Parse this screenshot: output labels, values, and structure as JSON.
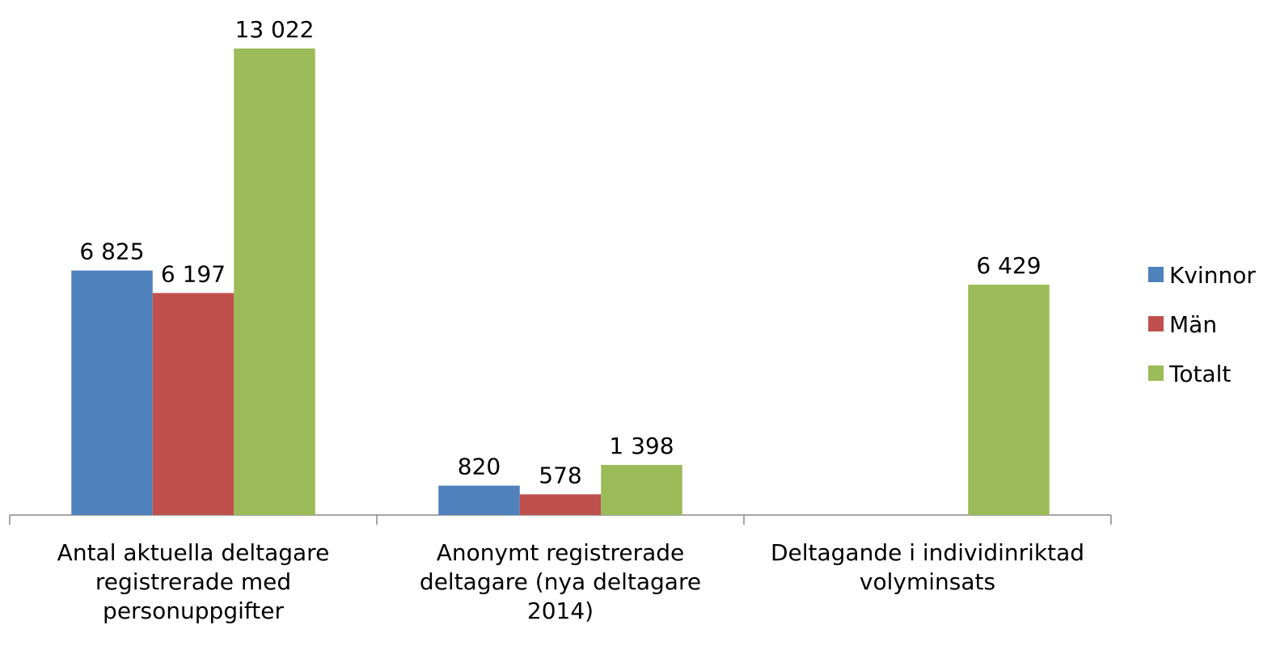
{
  "chart_data": {
    "type": "bar",
    "categories": [
      "Antal aktuella  deltagare\nregistrerade med\npersonuppgifter",
      "Anonymt registrerade\ndeltagare (nya deltagare\n2014)",
      "Deltagande i individinriktad\nvolyminsats"
    ],
    "series": [
      {
        "name": "Kvinnor",
        "color": "#4f81bd",
        "values": [
          6825,
          820,
          null
        ],
        "value_labels": [
          "6 825",
          "820",
          null
        ]
      },
      {
        "name": "Män",
        "color": "#c0504d",
        "values": [
          6197,
          578,
          null
        ],
        "value_labels": [
          "6 197",
          "578",
          null
        ]
      },
      {
        "name": "Totalt",
        "color": "#9bbb59",
        "values": [
          13022,
          1398,
          6429
        ],
        "value_labels": [
          "13 022",
          "1 398",
          "6 429"
        ]
      }
    ],
    "legend": "right"
  }
}
